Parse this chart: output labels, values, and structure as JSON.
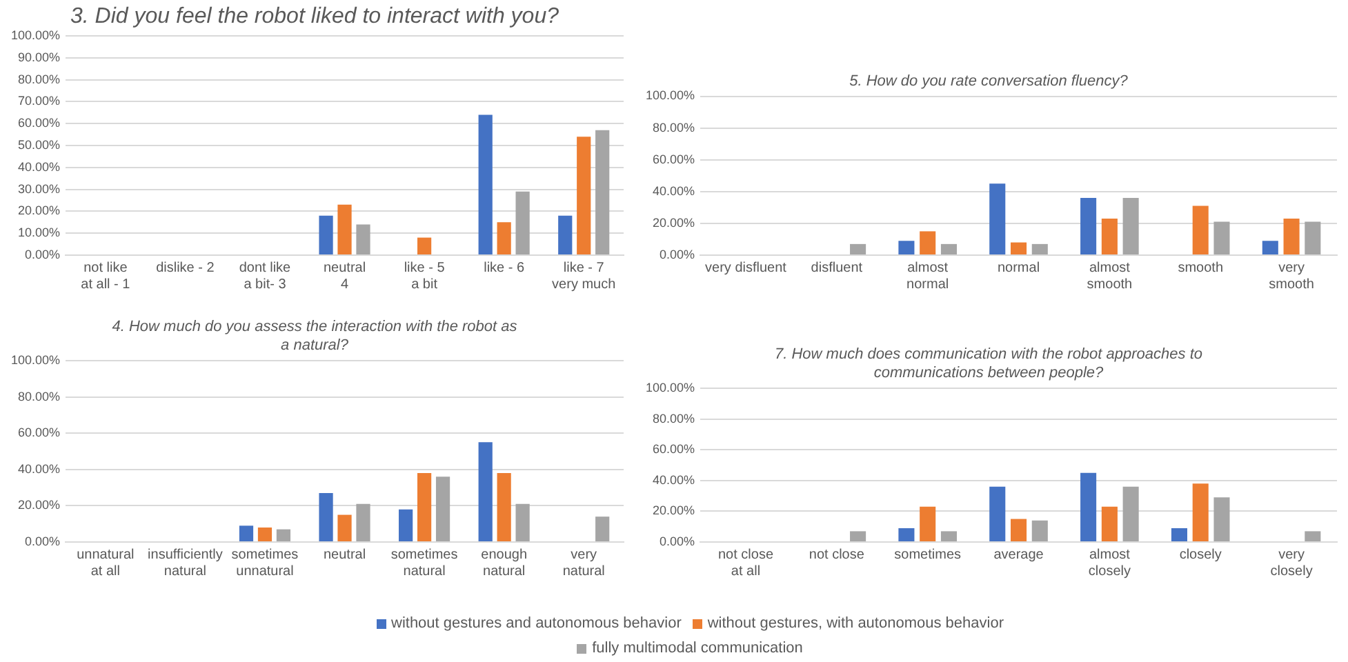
{
  "chart_data": [
    {
      "type": "bar",
      "title": "3. Did you feel the robot liked to interact with you?",
      "categories": [
        "not like\nat all - 1",
        "dislike - 2",
        "dont like\na bit- 3",
        "neutral\n4",
        "like - 5\na bit",
        "like - 6",
        "like - 7\nvery much"
      ],
      "series": [
        {
          "color": "#4472c4",
          "values": [
            0,
            0,
            0,
            18,
            0,
            64,
            18
          ]
        },
        {
          "color": "#ed7d31",
          "values": [
            0,
            0,
            0,
            23,
            8,
            15,
            54
          ]
        },
        {
          "color": "#a5a5a5",
          "values": [
            0,
            0,
            0,
            14,
            0,
            29,
            57
          ]
        }
      ],
      "ylim": [
        0,
        100
      ],
      "yticks": [
        {
          "value": 0,
          "label": "0.00%"
        },
        {
          "value": 10,
          "label": "10.00%"
        },
        {
          "value": 20,
          "label": "20.00%"
        },
        {
          "value": 30,
          "label": "30.00%"
        },
        {
          "value": 40,
          "label": "40.00%"
        },
        {
          "value": 50,
          "label": "50.00%"
        },
        {
          "value": 60,
          "label": "60.00%"
        },
        {
          "value": 70,
          "label": "70.00%"
        },
        {
          "value": 80,
          "label": "80.00%"
        },
        {
          "value": 90,
          "label": "90.00%"
        },
        {
          "value": 100,
          "label": "100.00%"
        }
      ],
      "grid": "y"
    },
    {
      "type": "bar",
      "title": "5. How do you rate conversation fluency?",
      "categories": [
        "very disfluent",
        "disfluent",
        "almost\nnormal",
        "normal",
        "almost\nsmooth",
        "smooth",
        "very\nsmooth"
      ],
      "series": [
        {
          "color": "#4472c4",
          "values": [
            0,
            0,
            9,
            45,
            36,
            0,
            9
          ]
        },
        {
          "color": "#ed7d31",
          "values": [
            0,
            0,
            15,
            8,
            23,
            31,
            23
          ]
        },
        {
          "color": "#a5a5a5",
          "values": [
            0,
            7,
            7,
            7,
            36,
            21,
            21
          ]
        }
      ],
      "ylim": [
        0,
        100
      ],
      "yticks": [
        {
          "value": 0,
          "label": "0.00%"
        },
        {
          "value": 20,
          "label": "20.00%"
        },
        {
          "value": 40,
          "label": "40.00%"
        },
        {
          "value": 60,
          "label": "60.00%"
        },
        {
          "value": 80,
          "label": "80.00%"
        },
        {
          "value": 100,
          "label": "100.00%"
        }
      ],
      "grid": "y"
    },
    {
      "type": "bar",
      "title": "4. How much do you assess the interaction with the robot as a natural?",
      "categories": [
        "unnatural\nat all",
        "insufficiently\nnatural",
        "sometimes\nunnatural",
        "neutral",
        "sometimes\nnatural",
        "enough\nnatural",
        "very\nnatural"
      ],
      "series": [
        {
          "color": "#4472c4",
          "values": [
            0,
            0,
            9,
            27,
            18,
            55,
            0
          ]
        },
        {
          "color": "#ed7d31",
          "values": [
            0,
            0,
            8,
            15,
            38,
            38,
            0
          ]
        },
        {
          "color": "#a5a5a5",
          "values": [
            0,
            0,
            7,
            21,
            36,
            21,
            14
          ]
        }
      ],
      "ylim": [
        0,
        100
      ],
      "yticks": [
        {
          "value": 0,
          "label": "0.00%"
        },
        {
          "value": 20,
          "label": "20.00%"
        },
        {
          "value": 40,
          "label": "40.00%"
        },
        {
          "value": 60,
          "label": "60.00%"
        },
        {
          "value": 80,
          "label": "80.00%"
        },
        {
          "value": 100,
          "label": "100.00%"
        }
      ],
      "grid": "y"
    },
    {
      "type": "bar",
      "title": "7. How much does communication with the robot approaches to communications between people?",
      "categories": [
        "not close\nat all",
        "not close",
        "sometimes",
        "average",
        "almost\nclosely",
        "closely",
        "very\nclosely"
      ],
      "series": [
        {
          "name": "without gestures and autonomous behavior",
          "color": "#4472c4",
          "values": [
            0,
            0,
            9,
            36,
            45,
            9,
            0
          ]
        },
        {
          "name": "without gestures, with autonomous behavior",
          "color": "#ed7d31",
          "values": [
            0,
            0,
            23,
            15,
            23,
            38,
            0
          ]
        },
        {
          "name": "fully multimodal communication",
          "color": "#a5a5a5",
          "values": [
            0,
            7,
            7,
            14,
            36,
            29,
            7
          ]
        }
      ],
      "ylim": [
        0,
        100
      ],
      "yticks": [
        {
          "value": 0,
          "label": "0.00%"
        },
        {
          "value": 20,
          "label": "20.00%"
        },
        {
          "value": 40,
          "label": "40.00%"
        },
        {
          "value": 60,
          "label": "60.00%"
        },
        {
          "value": 80,
          "label": "80.00%"
        },
        {
          "value": 100,
          "label": "100.00%"
        }
      ],
      "grid": "y",
      "legend": "bottom"
    }
  ]
}
